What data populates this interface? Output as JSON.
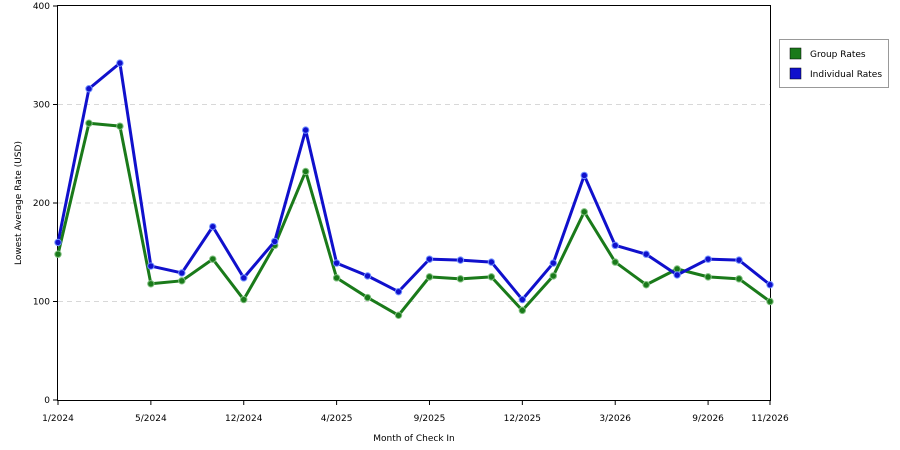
{
  "chart_data": {
    "type": "line",
    "title": "",
    "xlabel": "Month of Check In",
    "ylabel": "Lowest Average Rate (USD)",
    "ylim": [
      0,
      400
    ],
    "yticks": [
      0,
      100,
      200,
      300,
      400
    ],
    "x_tick_labels": [
      "1/2024",
      "5/2024",
      "12/2024",
      "4/2025",
      "9/2025",
      "12/2025",
      "3/2026",
      "9/2026",
      "11/2026"
    ],
    "x_tick_indices": [
      0,
      3,
      6,
      9,
      12,
      15,
      18,
      21,
      23
    ],
    "grid": "horizontal-dashed",
    "legend": "right",
    "series": [
      {
        "name": "Group Rates",
        "color": "#1a7a1a",
        "values": [
          148,
          281,
          278,
          118,
          121,
          143,
          102,
          157,
          232,
          124,
          104,
          86,
          125,
          123,
          125,
          91,
          126,
          191,
          140,
          117,
          133,
          125,
          123,
          100
        ]
      },
      {
        "name": "Individual Rates",
        "color": "#1010cc",
        "values": [
          160,
          316,
          342,
          136,
          129,
          176,
          124,
          161,
          274,
          139,
          126,
          110,
          143,
          142,
          140,
          102,
          139,
          228,
          157,
          148,
          127,
          143,
          142,
          117
        ]
      }
    ]
  }
}
